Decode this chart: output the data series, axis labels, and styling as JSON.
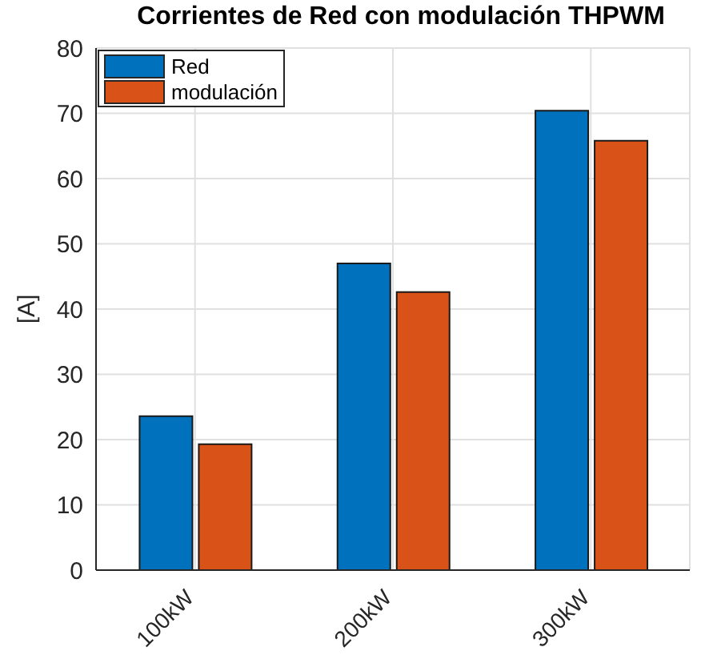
{
  "chart_data": {
    "type": "bar",
    "title": "Corrientes de Red con modulación THPWM",
    "ylabel": "[A]",
    "categories": [
      "100kW",
      "200kW",
      "300kW"
    ],
    "series": [
      {
        "name": "Red",
        "color": "#0072bd",
        "values": [
          23.6,
          47.0,
          70.4
        ]
      },
      {
        "name": "modulación",
        "color": "#d95319",
        "values": [
          19.3,
          42.6,
          65.8
        ]
      }
    ],
    "ylim": [
      0,
      80
    ],
    "yticks": [
      0,
      10,
      20,
      30,
      40,
      50,
      60,
      70,
      80
    ],
    "grid": true,
    "legend": "top left"
  }
}
